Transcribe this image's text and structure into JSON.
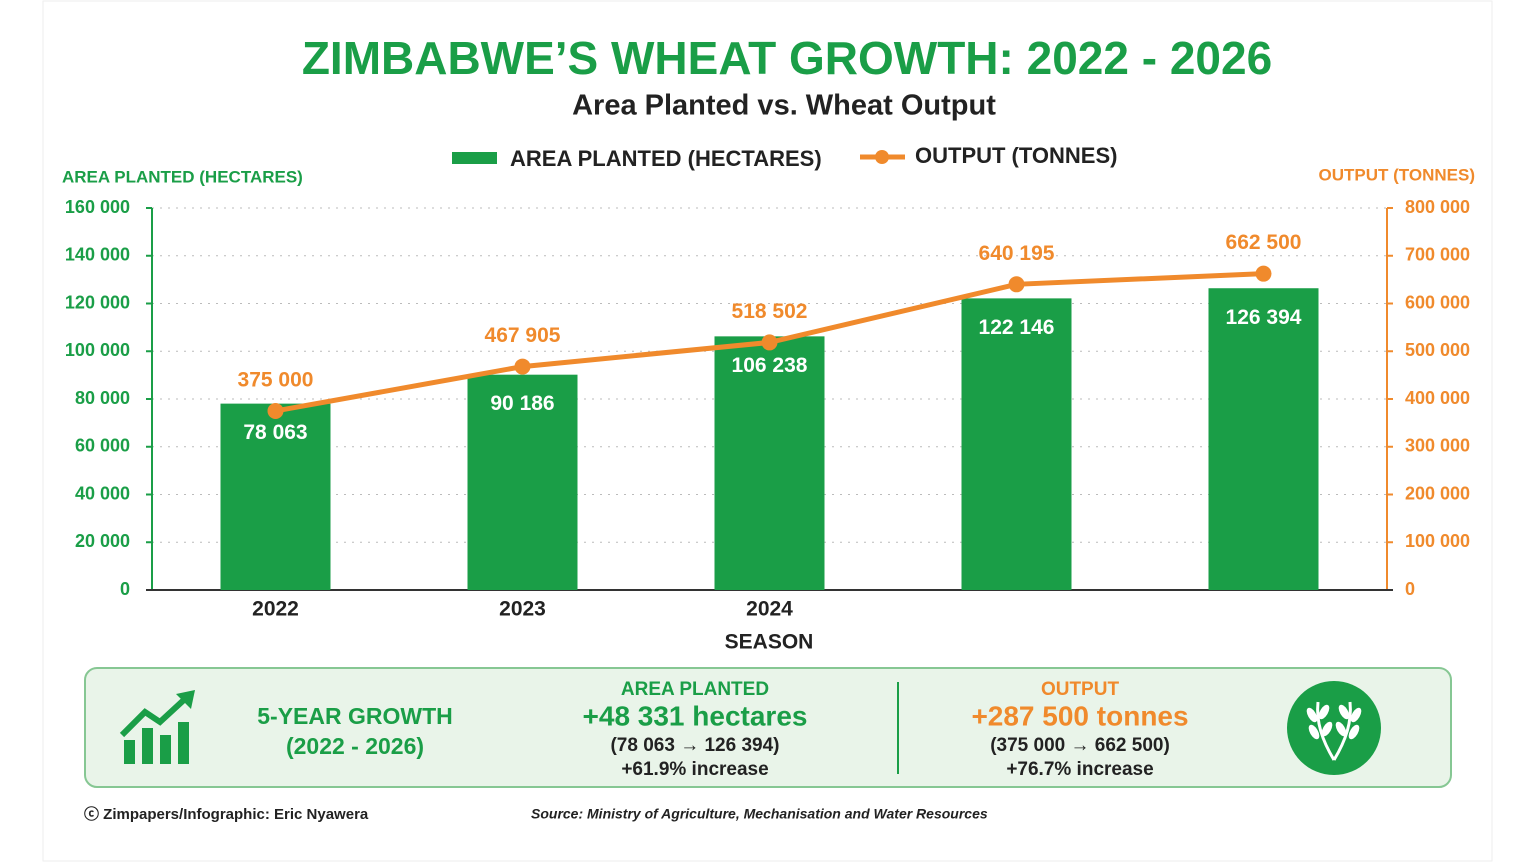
{
  "chart_data": {
    "type": "bar_line",
    "title": "ZIMBABWE’S WHEAT GROWTH: 2022 - 2026",
    "subtitle": "Area Planted vs. Wheat Output",
    "y_label": "AREA PLANTED (HECTARES)",
    "y2_label": "OUTPUT (TONNES)",
    "x_label": "SEASON",
    "categories": [
      "2022",
      "2023",
      "2024",
      null,
      null
    ],
    "series": [
      {
        "name": "AREA PLANTED (HECTARES)",
        "type": "bar",
        "color": "#1a9e47",
        "values": [
          78063,
          90186,
          106238,
          122146,
          126394
        ],
        "value_labels": [
          "78 063",
          "90 186",
          "106 238",
          "122 146",
          "126 394"
        ]
      },
      {
        "name": "OUTPUT (TONNES)",
        "type": "line",
        "axis": "y2",
        "color": "#f08a2c",
        "values": [
          375000,
          467905,
          518502,
          640195,
          662500
        ],
        "value_labels": [
          "375 000",
          "467 905",
          "518 502",
          "640 195",
          "662 500"
        ]
      }
    ],
    "ylim": [
      0,
      160000
    ],
    "yticks": [
      0,
      {
        "value": 20000,
        "label": "20 000"
      },
      {
        "value": 40000,
        "label": "40 000"
      },
      {
        "value": 60000,
        "label": "60 000"
      },
      {
        "value": 80000,
        "label": "80 000"
      },
      {
        "value": 100000,
        "label": "100 000"
      },
      {
        "value": 120000,
        "label": "120 000"
      },
      {
        "value": 140000,
        "label": "140 000"
      },
      {
        "value": 160000,
        "label": "160 000"
      }
    ],
    "y2lim": [
      0,
      800000
    ],
    "y2ticks": [
      0,
      {
        "value": 100000,
        "label": "100 000"
      },
      {
        "value": 200000,
        "label": "200 000"
      },
      {
        "value": 300000,
        "label": "300 000"
      },
      {
        "value": 400000,
        "label": "400 000"
      },
      {
        "value": 500000,
        "label": "500 000"
      },
      {
        "value": 600000,
        "label": "600 000"
      },
      {
        "value": 700000,
        "label": "700 000"
      },
      {
        "value": 800000,
        "label": "800 000"
      }
    ],
    "grid": true
  },
  "summary": {
    "growth_title": "5-YEAR GROWTH",
    "growth_period": "(2022 - 2026)",
    "area": {
      "title": "AREA PLANTED",
      "change": "+48 331 hectares",
      "range": "(78 063 → 126 394)",
      "percent": "+61.9% increase"
    },
    "output": {
      "title": "OUTPUT",
      "change": "+287 500 tonnes",
      "range": "(375 000 → 662 500)",
      "percent": "+76.7% increase"
    }
  },
  "footer": {
    "credit": "ⓒ Zimpapers/Infographic:  Eric Nyawera",
    "source": "Source: Ministry of Agriculture, Mechanisation and Water Resources"
  }
}
